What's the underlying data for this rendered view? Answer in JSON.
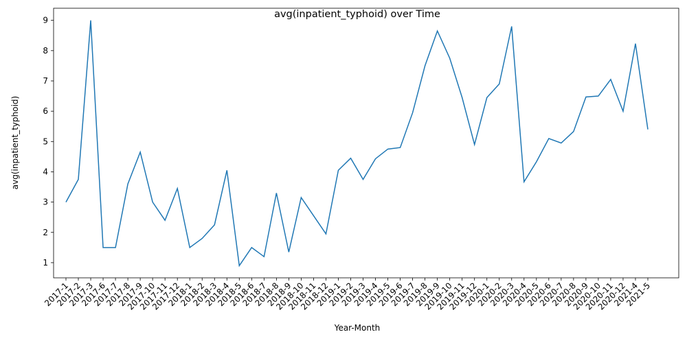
{
  "chart_data": {
    "type": "line",
    "title": "avg(inpatient_typhoid) over Time",
    "xlabel": "Year-Month",
    "ylabel": "avg(inpatient_typhoid)",
    "categories": [
      "2017-1",
      "2017-2",
      "2017-3",
      "2017-6",
      "2017-7",
      "2017-8",
      "2017-9",
      "2017-10",
      "2017-11",
      "2017-12",
      "2018-1",
      "2018-2",
      "2018-3",
      "2018-4",
      "2018-5",
      "2018-6",
      "2018-7",
      "2018-8",
      "2018-9",
      "2018-10",
      "2018-11",
      "2018-12",
      "2019-1",
      "2019-2",
      "2019-3",
      "2019-4",
      "2019-5",
      "2019-6",
      "2019-7",
      "2019-8",
      "2019-9",
      "2019-10",
      "2019-11",
      "2019-12",
      "2020-1",
      "2020-2",
      "2020-3",
      "2020-4",
      "2020-5",
      "2020-6",
      "2020-7",
      "2020-8",
      "2020-9",
      "2020-10",
      "2020-11",
      "2020-12",
      "2021-4",
      "2021-5"
    ],
    "series": [
      {
        "values": [
          3.0,
          3.75,
          9.0,
          1.5,
          1.5,
          3.6,
          4.65,
          3.0,
          2.4,
          3.45,
          1.5,
          1.8,
          2.25,
          4.05,
          0.9,
          1.5,
          1.2,
          3.3,
          1.35,
          3.15,
          2.55,
          1.95,
          4.05,
          4.45,
          3.75,
          4.43,
          4.75,
          4.8,
          5.95,
          7.5,
          8.65,
          7.75,
          6.45,
          4.9,
          6.45,
          6.9,
          8.8,
          3.67,
          4.33,
          5.1,
          4.95,
          5.33,
          6.47,
          6.5,
          7.05,
          6.0,
          8.23,
          5.4
        ],
        "color": "#1f77b4"
      }
    ],
    "yticks": [
      1,
      2,
      3,
      4,
      5,
      6,
      7,
      8,
      9
    ],
    "ylim": [
      0.5,
      9.4
    ],
    "grid": false,
    "legend": "none"
  }
}
